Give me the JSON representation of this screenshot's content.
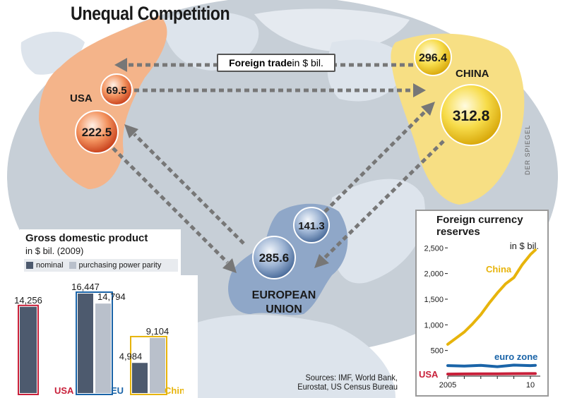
{
  "title": "Unequal Competition",
  "credit": "DER SPIEGEL",
  "map": {
    "trade_label_bold": "Foreign trade",
    "trade_label_unit": " in $ bil.",
    "regions": {
      "usa": "USA",
      "china": "CHINA",
      "eu_line1": "EUROPEAN",
      "eu_line2": "UNION"
    },
    "colors": {
      "usa": "#f4b48a",
      "china": "#f7df84",
      "eu": "#8fa7c8",
      "land": "#dde4ec",
      "ocean": "#c7cfd7"
    }
  },
  "sources": {
    "line1": "Sources: IMF, World Bank,",
    "line2": "Eurostat, US Census Bureau"
  },
  "chart_data": [
    {
      "type": "network",
      "title": "Foreign trade",
      "unit": "$ bil.",
      "flows": [
        {
          "from": "USA",
          "to": "China",
          "value": 69.5
        },
        {
          "from": "China",
          "to": "USA",
          "value": 296.4
        },
        {
          "from": "USA",
          "to": "European Union",
          "value": 222.5
        },
        {
          "from": "China",
          "to": "European Union",
          "value": 312.8
        },
        {
          "from": "European Union",
          "to": "USA",
          "value": 285.6
        },
        {
          "from": "European Union",
          "to": "China",
          "value": 141.3
        }
      ]
    },
    {
      "type": "bar",
      "title": "Gross domestic product",
      "subtitle": "in $ bil. (2009)",
      "categories": [
        "USA",
        "EU",
        "China"
      ],
      "category_colors": [
        "#c8203a",
        "#1a64a8",
        "#e7b40c"
      ],
      "series": [
        {
          "name": "nominal",
          "values": [
            14256,
            16447,
            4984
          ],
          "color": "#4d5a6e"
        },
        {
          "name": "purchasing power parity",
          "values": [
            null,
            14794,
            9104
          ],
          "color": "#b9c0cb"
        }
      ],
      "value_labels": [
        "14,256",
        "16,447",
        "14,794",
        "4,984",
        "9,104"
      ],
      "ylim": [
        0,
        16447
      ]
    },
    {
      "type": "line",
      "title": "Foreign currency reserves",
      "unit": "in $ bil.",
      "xlim": [
        2005,
        2010.6
      ],
      "xticks": [
        "2005",
        "10"
      ],
      "ylim": [
        0,
        2600
      ],
      "yticks": [
        500,
        1000,
        1500,
        2000,
        2500
      ],
      "ytick_labels": [
        "500",
        "1,000",
        "1,500",
        "2,000",
        "2,500"
      ],
      "series": [
        {
          "name": "China",
          "color": "#e7b40c",
          "x": [
            2005.0,
            2005.5,
            2006.0,
            2006.5,
            2007.0,
            2007.5,
            2008.0,
            2008.5,
            2009.0,
            2009.5,
            2010.0,
            2010.3
          ],
          "y": [
            620,
            740,
            860,
            1020,
            1200,
            1420,
            1620,
            1800,
            1920,
            2170,
            2370,
            2460
          ]
        },
        {
          "name": "euro zone",
          "color": "#1a64a8",
          "x": [
            2005.0,
            2006.0,
            2007.0,
            2008.0,
            2009.0,
            2010.0,
            2010.3
          ],
          "y": [
            205,
            195,
            210,
            185,
            215,
            205,
            210
          ]
        },
        {
          "name": "USA",
          "color": "#c8203a",
          "x": [
            2005.0,
            2006.0,
            2007.0,
            2008.0,
            2009.0,
            2010.0,
            2010.3
          ],
          "y": [
            40,
            42,
            44,
            45,
            48,
            50,
            50
          ]
        }
      ]
    }
  ]
}
